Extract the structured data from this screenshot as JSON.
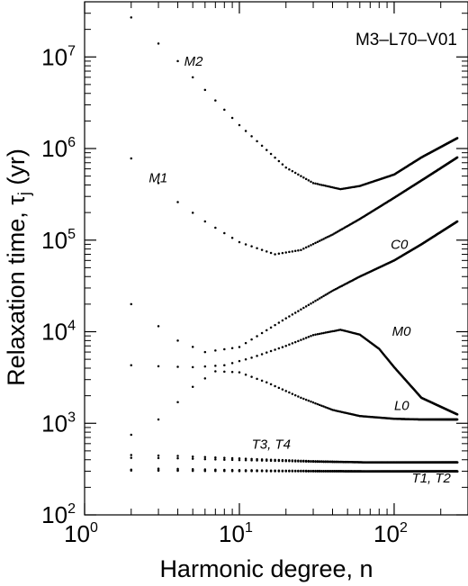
{
  "chart_data": {
    "type": "scatter",
    "title": "",
    "model_label": "M3–L70–V01",
    "xlabel": "Harmonic degree, n",
    "ylabel_main": "Relaxation time, τ",
    "ylabel_sub": "j",
    "ylabel_unit": " (yr)",
    "xscale": "log",
    "yscale": "log",
    "xlim": [
      1,
      300
    ],
    "ylim": [
      100,
      40000000
    ],
    "x_ticks": [
      {
        "value": 1,
        "base": "10",
        "exp": "0"
      },
      {
        "value": 10,
        "base": "10",
        "exp": "1"
      },
      {
        "value": 100,
        "base": "10",
        "exp": "2"
      }
    ],
    "y_ticks": [
      {
        "value": 100,
        "base": "10",
        "exp": "2"
      },
      {
        "value": 1000,
        "base": "10",
        "exp": "3"
      },
      {
        "value": 10000,
        "base": "10",
        "exp": "4"
      },
      {
        "value": 100000,
        "base": "10",
        "exp": "5"
      },
      {
        "value": 1000000,
        "base": "10",
        "exp": "6"
      },
      {
        "value": 10000000,
        "base": "10",
        "exp": "7"
      }
    ],
    "n_range": [
      2,
      256
    ],
    "series": [
      {
        "name": "M2",
        "points": [
          [
            2,
            27000000
          ],
          [
            3,
            14000000
          ],
          [
            4,
            9000000
          ],
          [
            5,
            6000000
          ],
          [
            10,
            1800000
          ],
          [
            20,
            620000
          ],
          [
            30,
            420000
          ],
          [
            45,
            360000
          ],
          [
            60,
            390000
          ],
          [
            100,
            520000
          ],
          [
            150,
            800000
          ],
          [
            256,
            1300000
          ]
        ]
      },
      {
        "name": "M1",
        "points": [
          [
            2,
            780000
          ],
          [
            3,
            420000
          ],
          [
            4,
            260000
          ],
          [
            6,
            160000
          ],
          [
            10,
            95000
          ],
          [
            17,
            70000
          ],
          [
            25,
            78000
          ],
          [
            40,
            115000
          ],
          [
            60,
            170000
          ],
          [
            100,
            290000
          ],
          [
            160,
            480000
          ],
          [
            256,
            800000
          ]
        ]
      },
      {
        "name": "C0",
        "points": [
          [
            2,
            20000
          ],
          [
            3,
            11500
          ],
          [
            4,
            8000
          ],
          [
            6,
            6000
          ],
          [
            10,
            6800
          ],
          [
            20,
            14000
          ],
          [
            40,
            28000
          ],
          [
            60,
            40000
          ],
          [
            100,
            60000
          ],
          [
            150,
            90000
          ],
          [
            256,
            160000
          ]
        ]
      },
      {
        "name": "M0",
        "points": [
          [
            2,
            4300
          ],
          [
            3,
            4200
          ],
          [
            5,
            4100
          ],
          [
            8,
            4300
          ],
          [
            12,
            5200
          ],
          [
            20,
            7000
          ],
          [
            30,
            9200
          ],
          [
            45,
            10500
          ],
          [
            60,
            9300
          ],
          [
            80,
            6500
          ],
          [
            100,
            4100
          ],
          [
            150,
            1900
          ],
          [
            256,
            1250
          ]
        ]
      },
      {
        "name": "L0",
        "points": [
          [
            3,
            1100
          ],
          [
            4,
            1700
          ],
          [
            5,
            2500
          ],
          [
            7,
            3700
          ],
          [
            10,
            3600
          ],
          [
            15,
            2800
          ],
          [
            25,
            1900
          ],
          [
            40,
            1400
          ],
          [
            60,
            1200
          ],
          [
            100,
            1120
          ],
          [
            150,
            1100
          ],
          [
            256,
            1100
          ]
        ]
      },
      {
        "name": "T3",
        "points": [
          [
            2,
            450
          ],
          [
            4,
            440
          ],
          [
            8,
            420
          ],
          [
            16,
            400
          ],
          [
            32,
            385
          ],
          [
            64,
            375
          ],
          [
            128,
            375
          ],
          [
            256,
            375
          ]
        ]
      },
      {
        "name": "T4",
        "points": [
          [
            2,
            420
          ],
          [
            4,
            415
          ],
          [
            8,
            400
          ],
          [
            16,
            390
          ],
          [
            32,
            380
          ],
          [
            64,
            375
          ],
          [
            128,
            375
          ],
          [
            256,
            375
          ]
        ]
      },
      {
        "name": "T1",
        "points": [
          [
            2,
            305
          ],
          [
            4,
            303
          ],
          [
            8,
            301
          ],
          [
            16,
            300
          ],
          [
            32,
            299
          ],
          [
            64,
            298
          ],
          [
            128,
            298
          ],
          [
            256,
            298
          ]
        ]
      },
      {
        "name": "T2",
        "points": [
          [
            2,
            312
          ],
          [
            4,
            308
          ],
          [
            8,
            304
          ],
          [
            16,
            302
          ],
          [
            32,
            300
          ],
          [
            64,
            299
          ],
          [
            128,
            298
          ],
          [
            256,
            298
          ]
        ]
      },
      {
        "name": "",
        "points": [
          [
            2,
            750
          ],
          [
            3,
            320
          ],
          [
            4,
            318
          ],
          [
            8,
            310
          ],
          [
            16,
            305
          ],
          [
            32,
            302
          ],
          [
            64,
            300
          ],
          [
            128,
            300
          ],
          [
            256,
            300
          ]
        ]
      }
    ],
    "annotations": [
      {
        "text": "M2",
        "x": 4.4,
        "y": 8000000
      },
      {
        "text": "M1",
        "x": 2.6,
        "y": 430000
      },
      {
        "text": "C0",
        "x": 95,
        "y": 80000
      },
      {
        "text": "M0",
        "x": 97,
        "y": 9000
      },
      {
        "text": "L0",
        "x": 100,
        "y": 1400
      },
      {
        "text": "T3, T4",
        "x": 12,
        "y": 530
      },
      {
        "text": "T1, T2",
        "x": 130,
        "y": 225
      }
    ]
  }
}
